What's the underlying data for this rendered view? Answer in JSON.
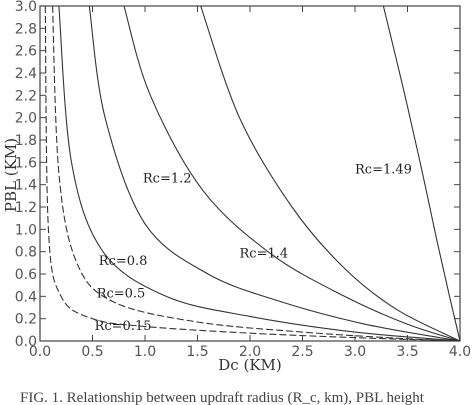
{
  "chart_data": {
    "type": "line",
    "xlabel": "Dc (KM)",
    "ylabel": "PBL (KM)",
    "xlim": [
      0.0,
      4.0
    ],
    "ylim": [
      0.0,
      3.0
    ],
    "xticks": [
      "0.0",
      "0.5",
      "1.0",
      "1.5",
      "2.0",
      "2.5",
      "3.0",
      "3.5",
      "4.0"
    ],
    "yticks": [
      "0.0",
      "0.2",
      "0.4",
      "0.6",
      "0.8",
      "1.0",
      "1.2",
      "1.4",
      "1.6",
      "1.8",
      "2.0",
      "2.2",
      "2.4",
      "2.6",
      "2.8",
      "3.0"
    ],
    "grid": false,
    "series": [
      {
        "name": "Rc=0.15",
        "points": [
          [
            0.05,
            3.0
          ],
          [
            0.08,
            1.0
          ],
          [
            0.2,
            0.4
          ],
          [
            0.5,
            0.2
          ],
          [
            1.0,
            0.13
          ],
          [
            2.0,
            0.07
          ],
          [
            3.0,
            0.03
          ],
          [
            4.0,
            0.0
          ]
        ]
      },
      {
        "name": "",
        "points": [
          [
            0.12,
            3.0
          ],
          [
            0.18,
            1.5
          ],
          [
            0.35,
            0.7
          ],
          [
            0.7,
            0.35
          ],
          [
            1.5,
            0.17
          ],
          [
            2.5,
            0.08
          ],
          [
            3.5,
            0.02
          ],
          [
            4.0,
            0.0
          ]
        ]
      },
      {
        "name": "Rc=0.5",
        "points": [
          [
            0.18,
            3.0
          ],
          [
            0.3,
            1.6
          ],
          [
            0.6,
            0.8
          ],
          [
            1.2,
            0.4
          ],
          [
            2.0,
            0.22
          ],
          [
            3.0,
            0.08
          ],
          [
            4.0,
            0.0
          ]
        ]
      },
      {
        "name": "Rc=0.8",
        "points": [
          [
            0.47,
            3.0
          ],
          [
            0.62,
            2.0
          ],
          [
            1.0,
            1.05
          ],
          [
            1.6,
            0.6
          ],
          [
            2.3,
            0.35
          ],
          [
            3.1,
            0.15
          ],
          [
            4.0,
            0.0
          ]
        ]
      },
      {
        "name": "Rc=1.2",
        "points": [
          [
            0.8,
            3.0
          ],
          [
            1.05,
            2.2
          ],
          [
            1.55,
            1.35
          ],
          [
            2.2,
            0.78
          ],
          [
            2.9,
            0.4
          ],
          [
            3.5,
            0.15
          ],
          [
            4.0,
            0.0
          ]
        ]
      },
      {
        "name": "Rc=1.4",
        "points": [
          [
            1.53,
            3.0
          ],
          [
            1.9,
            2.0
          ],
          [
            2.4,
            1.2
          ],
          [
            2.9,
            0.65
          ],
          [
            3.4,
            0.28
          ],
          [
            4.0,
            0.0
          ]
        ]
      },
      {
        "name": "Rc=1.49",
        "points": [
          [
            3.27,
            3.0
          ],
          [
            3.45,
            2.3
          ],
          [
            3.62,
            1.6
          ],
          [
            3.78,
            0.9
          ],
          [
            3.9,
            0.4
          ],
          [
            4.0,
            0.0
          ]
        ]
      }
    ],
    "curve_labels": [
      {
        "text": "Rc=0.15",
        "x": 0.52,
        "y": 0.1
      },
      {
        "text": "Rc=0.5",
        "x": 0.54,
        "y": 0.39
      },
      {
        "text": "Rc=0.8",
        "x": 0.56,
        "y": 0.68
      },
      {
        "text": "Rc=1.2",
        "x": 0.98,
        "y": 1.42
      },
      {
        "text": "Rc=1.4",
        "x": 1.9,
        "y": 0.75
      },
      {
        "text": "Rc=1.49",
        "x": 3.0,
        "y": 1.5
      }
    ]
  },
  "caption": "FIG. 1. Relationship between updraft radius (R_c, km), PBL height"
}
